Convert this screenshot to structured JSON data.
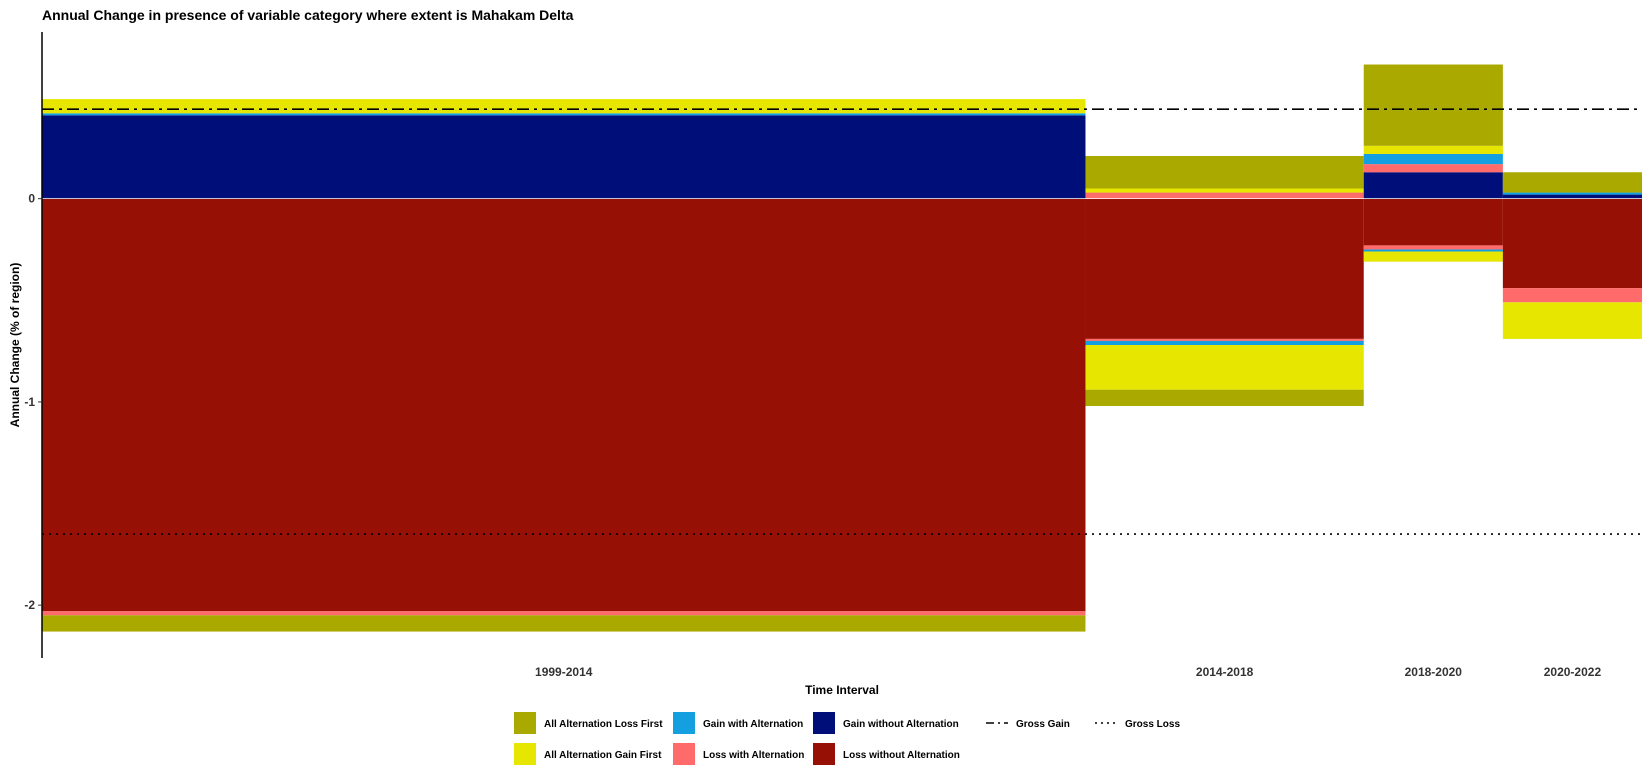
{
  "chart_data": {
    "type": "bar",
    "title": "Annual Change in presence of variable category where extent is Mahakam Delta",
    "xlabel": "Time Interval",
    "ylabel": "Annual Change (% of region)",
    "categories": [
      "1999-2014",
      "2014-2018",
      "2018-2020",
      "2020-2022"
    ],
    "interval_bounds": [
      [
        1999,
        2014
      ],
      [
        2014,
        2018
      ],
      [
        2018,
        2020
      ],
      [
        2020,
        2022
      ]
    ],
    "x_range": [
      1999,
      2022
    ],
    "ylim": [
      -2.26,
      0.82
    ],
    "yticks": [
      -2,
      -1,
      0
    ],
    "ytick_labels": [
      "-2",
      "-1",
      "0"
    ],
    "grid": false,
    "legend_position": "bottom",
    "series": [
      {
        "name": "Gain without Alternation",
        "color": "#000E7A",
        "values": [
          0.41,
          0.0,
          0.13,
          0.02
        ]
      },
      {
        "name": "Loss with Alternation",
        "color": "#FF6B6B",
        "values": [
          0.0,
          0.03,
          0.04,
          0.0
        ]
      },
      {
        "name": "Gain with Alternation",
        "color": "#14A0E0",
        "values": [
          0.01,
          0.0,
          0.05,
          0.01
        ]
      },
      {
        "name": "All Alternation Gain First",
        "color": "#E6E600",
        "values": [
          0.07,
          0.02,
          0.04,
          0.0
        ]
      },
      {
        "name": "All Alternation Loss First",
        "color": "#A9A900",
        "values": [
          0.0,
          0.16,
          0.4,
          0.1
        ]
      },
      {
        "name": "Loss without Alternation",
        "color": "#961005",
        "values": [
          -2.03,
          -0.69,
          -0.23,
          -0.44
        ]
      },
      {
        "name": "Loss with Alternation",
        "color": "#FF6B6B",
        "values": [
          -0.02,
          -0.01,
          -0.02,
          -0.07
        ]
      },
      {
        "name": "Gain with Alternation",
        "color": "#14A0E0",
        "values": [
          0.0,
          -0.02,
          -0.01,
          0.0
        ]
      },
      {
        "name": "All Alternation Gain First",
        "color": "#E6E600",
        "values": [
          0.0,
          -0.22,
          -0.05,
          -0.18
        ]
      },
      {
        "name": "All Alternation Loss First",
        "color": "#A9A900",
        "values": [
          -0.08,
          -0.08,
          0.0,
          0.0
        ]
      }
    ],
    "reference_lines": [
      {
        "name": "Gross Gain",
        "value": 0.44,
        "style": "dashdot",
        "color": "#000000"
      },
      {
        "name": "Gross Loss",
        "value": -1.65,
        "style": "dotted",
        "color": "#000000"
      }
    ],
    "legend": [
      {
        "label": "All Alternation Loss First",
        "kind": "fill",
        "color": "#A9A900"
      },
      {
        "label": "Gain with Alternation",
        "kind": "fill",
        "color": "#14A0E0"
      },
      {
        "label": "Gain without Alternation",
        "kind": "fill",
        "color": "#000E7A"
      },
      {
        "label": "Gross Gain",
        "kind": "line",
        "style": "dashdot"
      },
      {
        "label": "Gross Loss",
        "kind": "line",
        "style": "dotted"
      },
      {
        "label": "All Alternation Gain First",
        "kind": "fill",
        "color": "#E6E600"
      },
      {
        "label": "Loss with Alternation",
        "kind": "fill",
        "color": "#FF6B6B"
      },
      {
        "label": "Loss without Alternation",
        "kind": "fill",
        "color": "#961005"
      }
    ]
  }
}
